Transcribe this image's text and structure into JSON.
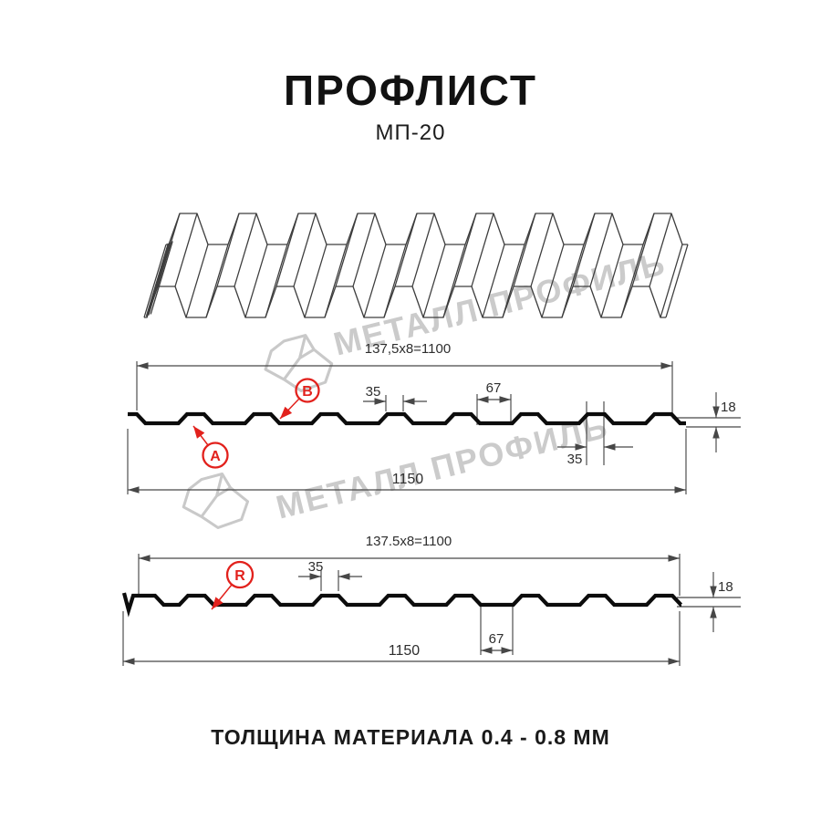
{
  "header": {
    "title": "ПРОФЛИСТ",
    "subtitle": "МП-20"
  },
  "watermark": {
    "text": "МЕТАЛЛ ПРОФИЛЬ"
  },
  "diagram1": {
    "width_formula": "137,5x8=1100",
    "label_a": "A",
    "label_b": "B",
    "dim_crest_top": "35",
    "dim_trough": "67",
    "dim_height": "18",
    "dim_crest_bottom": "35",
    "dim_total": "1150"
  },
  "diagram2": {
    "width_formula": "137.5x8=1100",
    "label_r": "R",
    "dim_crest_top": "35",
    "dim_height": "18",
    "dim_trough": "67",
    "dim_total": "1150"
  },
  "footer": {
    "thickness_note": "ТОЛЩИНА МАТЕРИАЛА 0.4 - 0.8 ММ"
  },
  "colors": {
    "accent_red": "#e2211c",
    "dimension_line": "#474747",
    "profile_line": "#0c0c0c",
    "watermark_gray": "#c9c9c9"
  }
}
